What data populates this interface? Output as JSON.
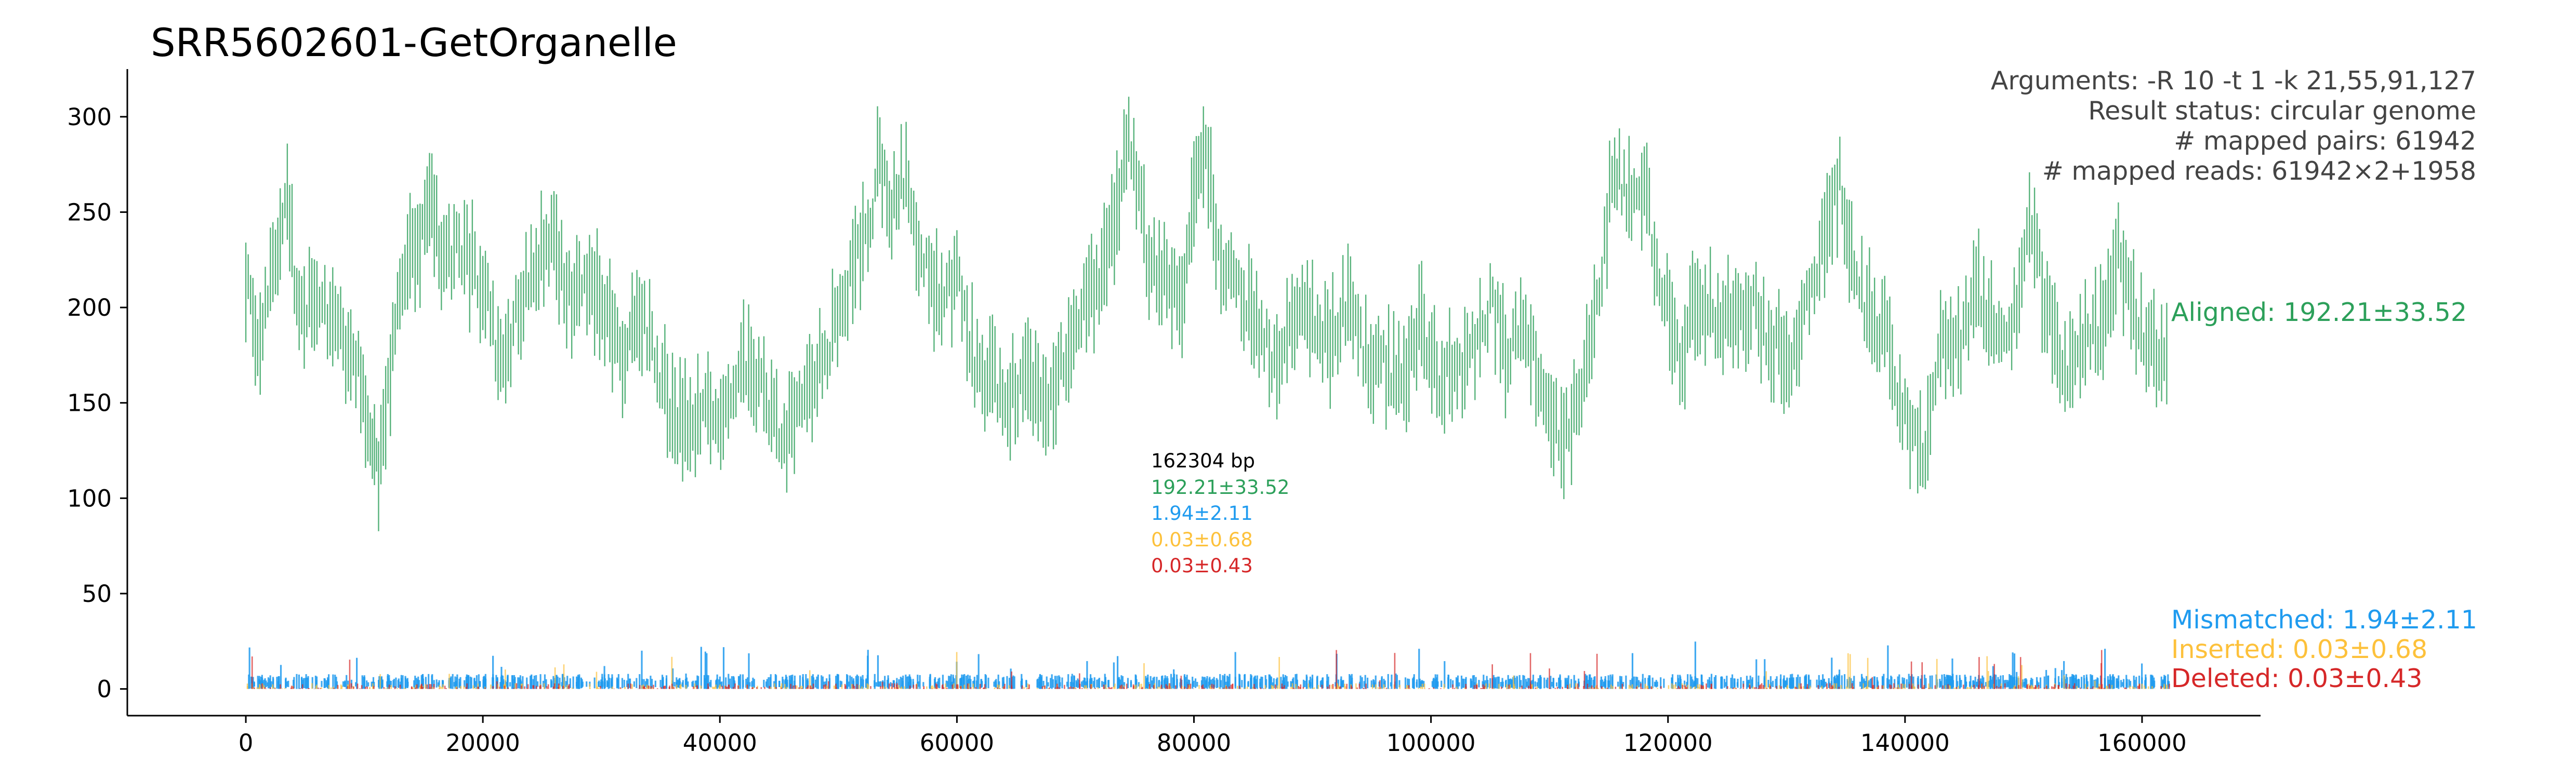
{
  "chart_data": {
    "type": "scatter",
    "title": "SRR5602601-GetOrganelle",
    "xlabel": "",
    "ylabel": "",
    "xlim": [
      -10000,
      170000
    ],
    "ylim": [
      -14,
      325
    ],
    "x_ticks": [
      0,
      20000,
      40000,
      60000,
      80000,
      100000,
      120000,
      140000,
      160000
    ],
    "y_ticks": [
      0,
      50,
      100,
      150,
      200,
      250,
      300
    ],
    "grid": false,
    "genome_length_bp": 162304,
    "info_lines": [
      "Arguments: -R 10 -t 1 -k 21,55,91,127",
      "Result status: circular genome",
      "# mapped pairs: 61942",
      "# mapped reads: 61942×2+1958"
    ],
    "center_summary": [
      {
        "text": "162304 bp",
        "color": "#000000"
      },
      {
        "text": "192.21±33.52",
        "color": "#2ca05a"
      },
      {
        "text": "1.94±2.11",
        "color": "#1f9bef"
      },
      {
        "text": "0.03±0.68",
        "color": "#fdc13b"
      },
      {
        "text": "0.03±0.43",
        "color": "#d62728"
      }
    ],
    "series": [
      {
        "name": "Aligned",
        "label": "Aligned: 192.21±33.52",
        "color": "#2ca05a",
        "mean": 192.21,
        "sd": 33.52,
        "x": [
          0,
          1000,
          2500,
          3500,
          4500,
          6000,
          8000,
          9500,
          10500,
          11200,
          12000,
          13000,
          14500,
          15500,
          16500,
          18000,
          20000,
          21500,
          23000,
          24500,
          26000,
          27500,
          29000,
          30500,
          32000,
          33000,
          34500,
          36000,
          37500,
          39000,
          40500,
          42000,
          43500,
          45000,
          46500,
          48000,
          49500,
          51000,
          52500,
          53500,
          54500,
          55500,
          57000,
          58500,
          60000,
          61500,
          63000,
          64500,
          66000,
          67500,
          69000,
          70500,
          72000,
          73500,
          74500,
          76000,
          77500,
          79000,
          80000,
          81000,
          82500,
          84000,
          85500,
          87000,
          88500,
          90000,
          91500,
          93000,
          94500,
          96000,
          97500,
          99000,
          100500,
          102000,
          103500,
          105000,
          106500,
          108000,
          109500,
          111000,
          112500,
          114000,
          115500,
          116500,
          118000,
          119500,
          121000,
          122500,
          124000,
          125500,
          127000,
          128500,
          130000,
          131500,
          133000,
          134500,
          135500,
          137000,
          138500,
          140000,
          141500,
          143000,
          144500,
          146000,
          147500,
          149000,
          150500,
          152000,
          153500,
          155000,
          156500,
          158000,
          159500,
          161000,
          162300
        ],
        "y": [
          215,
          175,
          230,
          255,
          195,
          205,
          185,
          170,
          130,
          112,
          160,
          210,
          230,
          265,
          220,
          230,
          215,
          165,
          200,
          225,
          235,
          205,
          215,
          195,
          170,
          200,
          175,
          145,
          135,
          150,
          140,
          170,
          155,
          130,
          140,
          165,
          185,
          215,
          240,
          280,
          250,
          270,
          230,
          205,
          215,
          170,
          160,
          155,
          165,
          150,
          175,
          200,
          215,
          250,
          290,
          230,
          215,
          200,
          270,
          280,
          215,
          210,
          185,
          170,
          195,
          195,
          180,
          205,
          175,
          170,
          160,
          190,
          165,
          160,
          175,
          205,
          175,
          195,
          155,
          130,
          150,
          195,
          280,
          255,
          260,
          210,
          175,
          210,
          195,
          195,
          205,
          185,
          170,
          200,
          230,
          265,
          225,
          195,
          180,
          140,
          120,
          185,
          175,
          210,
          190,
          185,
          245,
          200,
          170,
          175,
          190,
          235,
          195,
          175,
          175
        ]
      },
      {
        "name": "Mismatched",
        "label": "Mismatched: 1.94±2.11",
        "color": "#1f9bef",
        "mean": 1.94,
        "sd": 2.11
      },
      {
        "name": "Inserted",
        "label": "Inserted: 0.03±0.68",
        "color": "#fdc13b",
        "mean": 0.03,
        "sd": 0.68
      },
      {
        "name": "Deleted",
        "label": "Deleted: 0.03±0.43",
        "color": "#d62728",
        "mean": 0.03,
        "sd": 0.43
      }
    ]
  }
}
